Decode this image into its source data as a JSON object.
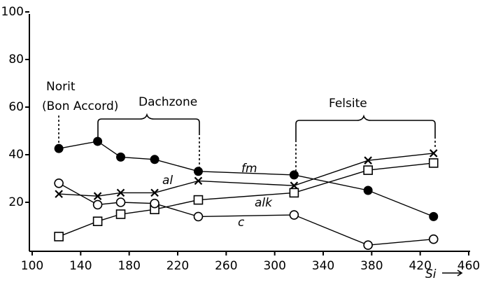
{
  "chart_data": {
    "type": "line",
    "x": [
      122,
      154,
      173,
      201,
      237,
      316,
      377,
      431
    ],
    "series": [
      {
        "name": "fm",
        "color": "#000000",
        "marker": "filled-circle",
        "values": [
          42.6,
          45.6,
          39,
          38,
          33,
          31.5,
          25,
          14
        ]
      },
      {
        "name": "al",
        "color": "#000000",
        "marker": "x",
        "values": [
          23.5,
          22.6,
          24,
          24,
          29,
          27,
          37.6,
          40.6
        ]
      },
      {
        "name": "alk",
        "color": "#000000",
        "marker": "square",
        "values": [
          5.6,
          12,
          15,
          17,
          21,
          24,
          33.5,
          36.5
        ]
      },
      {
        "name": "c",
        "color": "#000000",
        "marker": "circle",
        "values": [
          28,
          19,
          20,
          19.5,
          14,
          14.7,
          2,
          4.5
        ]
      }
    ],
    "xlim": [
      100,
      460
    ],
    "xticks": [
      100,
      140,
      180,
      220,
      260,
      300,
      340,
      380,
      420,
      460
    ],
    "ylim": [
      0,
      100
    ],
    "yticks": [
      20,
      40,
      60,
      80,
      100
    ],
    "x_label": "Si",
    "annotations": [
      "Norit",
      "(Bon Accord)",
      "Dachzone",
      "Felsite"
    ]
  }
}
